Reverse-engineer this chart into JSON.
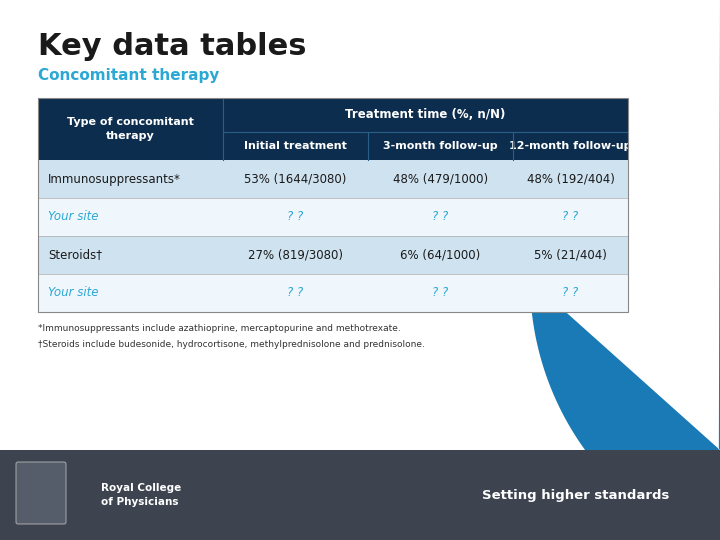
{
  "title": "Key data tables",
  "subtitle": "Concomitant therapy",
  "title_color": "#1a1a1a",
  "subtitle_color": "#2ba8d4",
  "header_bg": "#0d2d4e",
  "header_text_color": "#ffffff",
  "col1_header": "Type of concomitant\ntherapy",
  "treatment_time_header": "Treatment time (%, n/N)",
  "sub_headers": [
    "Initial treatment",
    "3-month follow-up",
    "12-month follow-up"
  ],
  "rows": [
    {
      "label": "Immunosuppressants*",
      "values": [
        "53% (1644/3080)",
        "48% (479/1000)",
        "48% (192/404)"
      ],
      "bg": "#cfe2f0",
      "label_color": "#1a1a1a",
      "value_color": "#1a1a1a",
      "is_your_site": false
    },
    {
      "label": "Your site",
      "values": [
        "? ?",
        "? ?",
        "? ?"
      ],
      "bg": "#f0f7fc",
      "label_color": "#2ba8d4",
      "value_color": "#2ba8d4",
      "is_your_site": true
    },
    {
      "label": "Steroids†",
      "values": [
        "27% (819/3080)",
        "6% (64/1000)",
        "5% (21/404)"
      ],
      "bg": "#cfe2f0",
      "label_color": "#1a1a1a",
      "value_color": "#1a1a1a",
      "is_your_site": false
    },
    {
      "label": "Your site",
      "values": [
        "? ?",
        "? ?",
        "? ?"
      ],
      "bg": "#f0f7fc",
      "label_color": "#2ba8d4",
      "value_color": "#2ba8d4",
      "is_your_site": true
    }
  ],
  "footnote1": "*Immunosuppressants include azathioprine, mercaptopurine and methotrexate.",
  "footnote2": "†Steroids include budesonide, hydrocortisone, methylprednisolone and prednisolone.",
  "footer_bg": "#3d4450",
  "footer_text": "Setting higher standards",
  "bg_color": "#ffffff",
  "right_curve_color": "#1a7ab5",
  "fig_width": 7.2,
  "fig_height": 5.4,
  "dpi": 100
}
